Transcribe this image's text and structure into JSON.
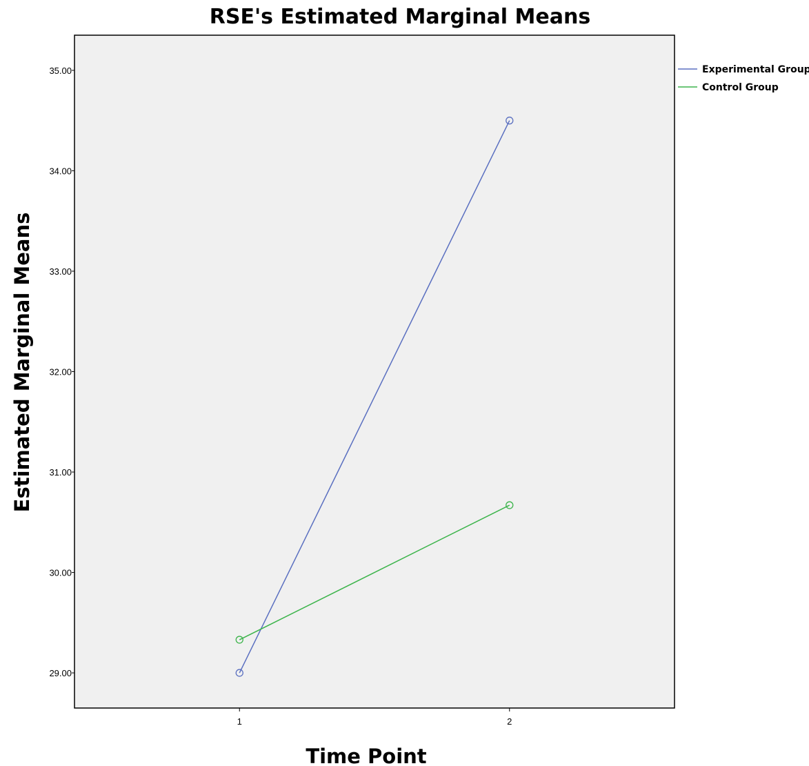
{
  "chart_data": {
    "type": "line",
    "title": "RSE's Estimated Marginal Means",
    "xlabel": "Time Point",
    "ylabel": "Estimated Marginal Means",
    "categories": [
      "1",
      "2"
    ],
    "ylim": [
      28.65,
      35.35
    ],
    "yticks": [
      "29.00",
      "30.00",
      "31.00",
      "32.00",
      "33.00",
      "34.00",
      "35.00"
    ],
    "grid": false,
    "legend_position": "top-right, outside plot",
    "plot_background": "#f0f0f0",
    "series": [
      {
        "name": "Experimental Group",
        "color": "#5a6fc0",
        "values": [
          29.0,
          34.5
        ]
      },
      {
        "name": "Control Group",
        "color": "#3cb44b",
        "values": [
          29.33,
          30.67
        ]
      }
    ]
  }
}
